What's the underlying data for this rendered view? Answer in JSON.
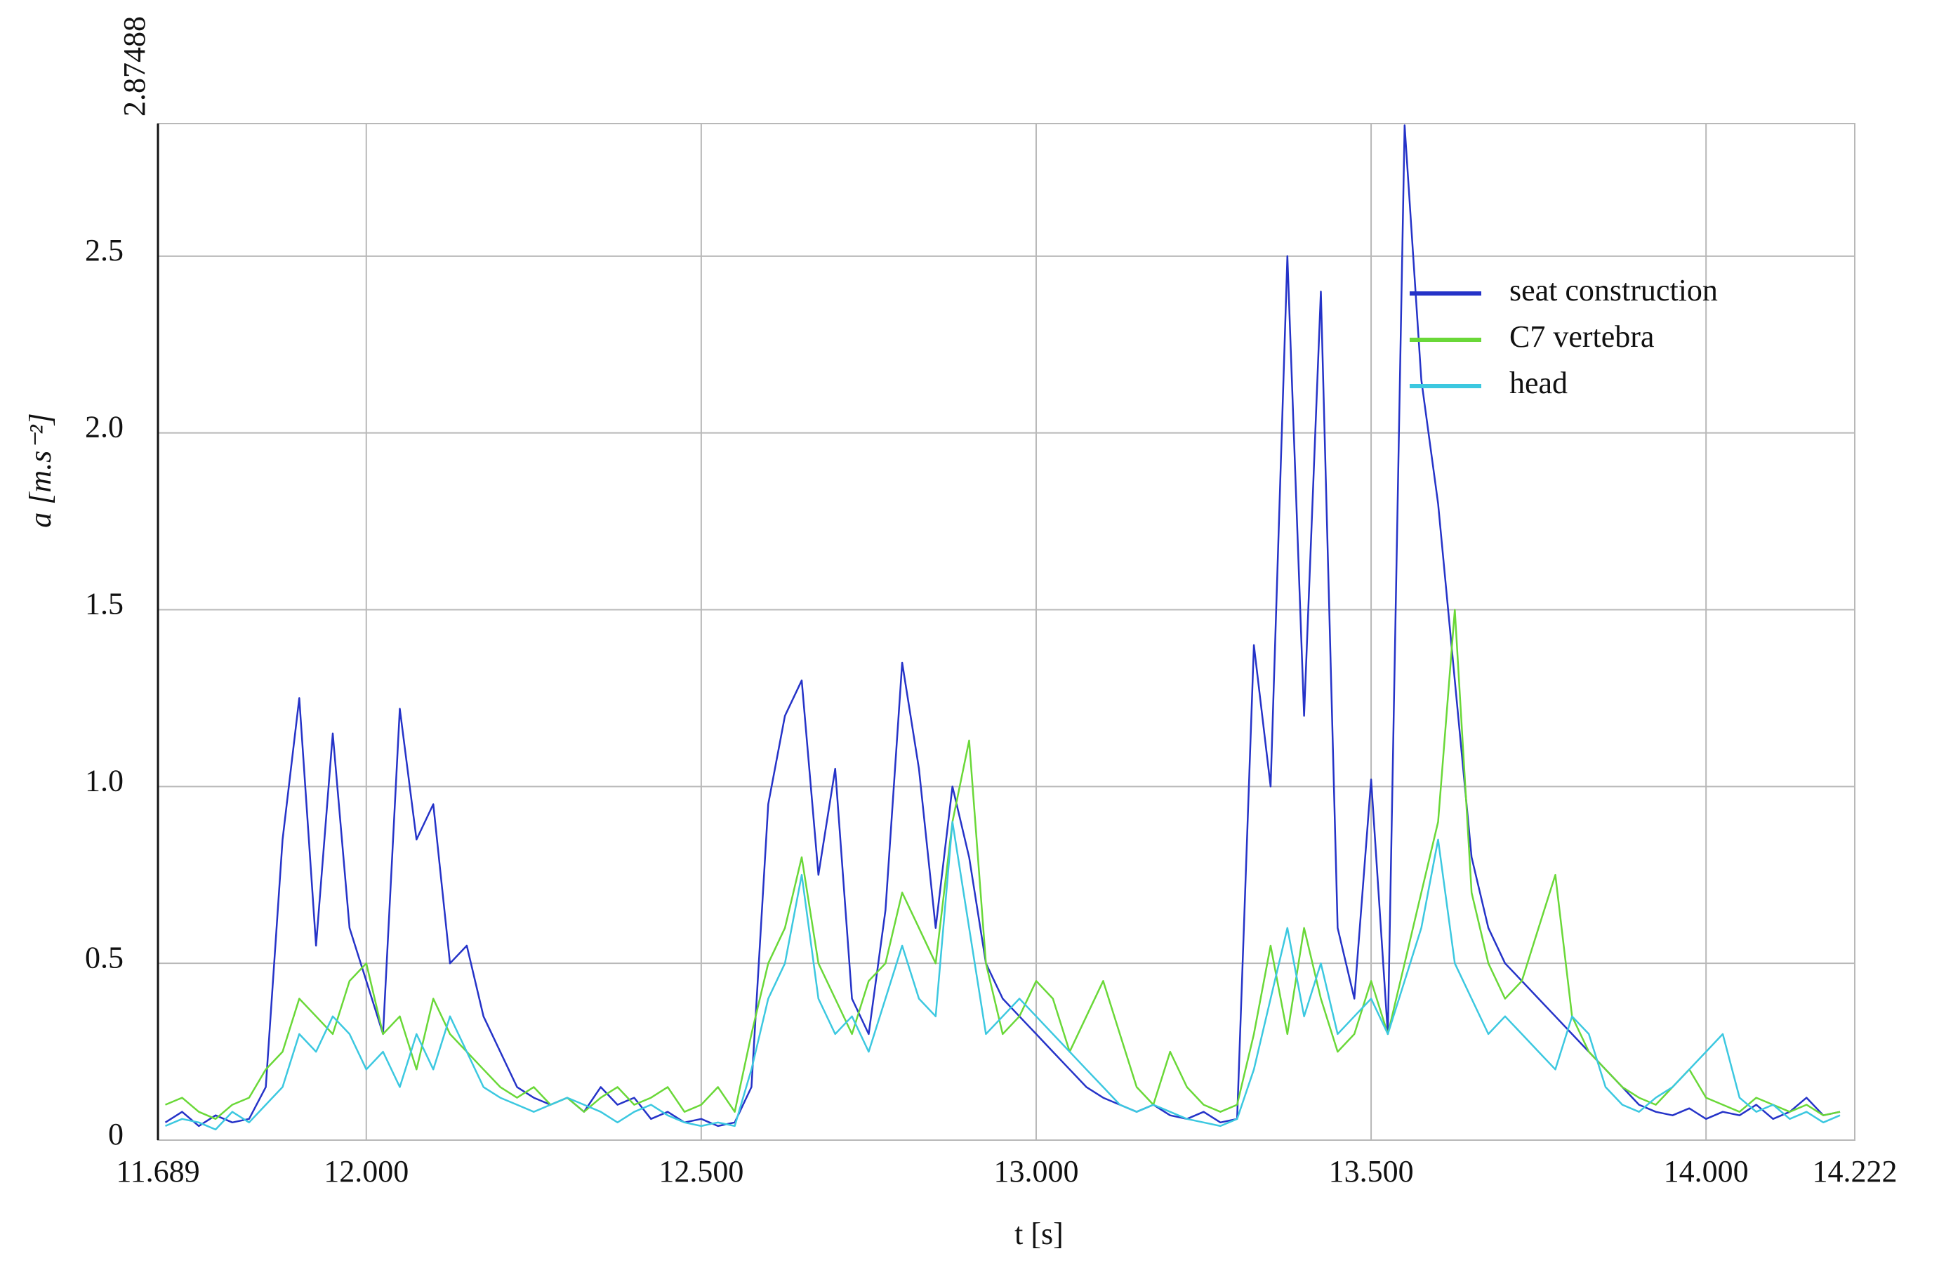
{
  "chart_data": {
    "type": "line",
    "x_label": "t [s]",
    "y_label": "a [m.s⁻²]",
    "xlim": [
      11.689,
      14.222
    ],
    "ylim": [
      0,
      2.87488
    ],
    "xticks": [
      11.689,
      {
        "value": 12,
        "label": "12.000"
      },
      {
        "value": 12.5,
        "label": "12.500"
      },
      {
        "value": 13,
        "label": "13.000"
      },
      {
        "value": 13.5,
        "label": "13.500"
      },
      {
        "value": 14,
        "label": "14.000"
      },
      14.222
    ],
    "yticks": [
      0,
      0.5,
      {
        "value": 1,
        "label": "1.0"
      },
      1.5,
      {
        "value": 2,
        "label": "2.0"
      },
      2.5,
      2.87488
    ],
    "grid": true,
    "legend": "upper right",
    "x": [
      11.7,
      11.725,
      11.75,
      11.775,
      11.8,
      11.825,
      11.85,
      11.875,
      11.9,
      11.925,
      11.95,
      11.975,
      12,
      12.025,
      12.05,
      12.075,
      12.1,
      12.125,
      12.15,
      12.175,
      12.2,
      12.225,
      12.25,
      12.275,
      12.3,
      12.325,
      12.35,
      12.375,
      12.4,
      12.425,
      12.45,
      12.475,
      12.5,
      12.525,
      12.55,
      12.575,
      12.6,
      12.625,
      12.65,
      12.675,
      12.7,
      12.725,
      12.75,
      12.775,
      12.8,
      12.825,
      12.85,
      12.875,
      12.9,
      12.925,
      12.95,
      12.975,
      13,
      13.025,
      13.05,
      13.075,
      13.1,
      13.125,
      13.15,
      13.175,
      13.2,
      13.225,
      13.25,
      13.275,
      13.3,
      13.325,
      13.35,
      13.375,
      13.4,
      13.425,
      13.45,
      13.475,
      13.5,
      13.525,
      13.55,
      13.575,
      13.6,
      13.625,
      13.65,
      13.675,
      13.7,
      13.725,
      13.75,
      13.775,
      13.8,
      13.825,
      13.85,
      13.875,
      13.9,
      13.925,
      13.95,
      13.975,
      14,
      14.025,
      14.05,
      14.075,
      14.1,
      14.125,
      14.15,
      14.175,
      14.2
    ],
    "series": [
      {
        "name": "seat construction",
        "color": "#2533c8",
        "values": [
          0.05,
          0.08,
          0.04,
          0.07,
          0.05,
          0.06,
          0.15,
          0.85,
          1.25,
          0.55,
          1.15,
          0.6,
          0.45,
          0.3,
          1.22,
          0.85,
          0.95,
          0.5,
          0.55,
          0.35,
          0.25,
          0.15,
          0.12,
          0.1,
          0.12,
          0.08,
          0.15,
          0.1,
          0.12,
          0.06,
          0.08,
          0.05,
          0.06,
          0.04,
          0.05,
          0.15,
          0.95,
          1.2,
          1.3,
          0.75,
          1.05,
          0.4,
          0.3,
          0.65,
          1.35,
          1.05,
          0.6,
          1.0,
          0.8,
          0.5,
          0.4,
          0.35,
          0.3,
          0.25,
          0.2,
          0.15,
          0.12,
          0.1,
          0.08,
          0.1,
          0.07,
          0.06,
          0.08,
          0.05,
          0.06,
          1.4,
          1.0,
          2.5,
          1.2,
          2.4,
          0.6,
          0.4,
          1.02,
          0.3,
          2.87,
          2.15,
          1.8,
          1.3,
          0.8,
          0.6,
          0.5,
          0.45,
          0.4,
          0.35,
          0.3,
          0.25,
          0.2,
          0.15,
          0.1,
          0.08,
          0.07,
          0.09,
          0.06,
          0.08,
          0.07,
          0.1,
          0.06,
          0.08,
          0.12,
          0.07,
          0.08
        ]
      },
      {
        "name": "C7 vertebra",
        "color": "#6ad838",
        "values": [
          0.1,
          0.12,
          0.08,
          0.06,
          0.1,
          0.12,
          0.2,
          0.25,
          0.4,
          0.35,
          0.3,
          0.45,
          0.5,
          0.3,
          0.35,
          0.2,
          0.4,
          0.3,
          0.25,
          0.2,
          0.15,
          0.12,
          0.15,
          0.1,
          0.12,
          0.08,
          0.12,
          0.15,
          0.1,
          0.12,
          0.15,
          0.08,
          0.1,
          0.15,
          0.08,
          0.3,
          0.5,
          0.6,
          0.8,
          0.5,
          0.4,
          0.3,
          0.45,
          0.5,
          0.7,
          0.6,
          0.5,
          0.9,
          1.13,
          0.5,
          0.3,
          0.35,
          0.45,
          0.4,
          0.25,
          0.35,
          0.45,
          0.3,
          0.15,
          0.1,
          0.25,
          0.15,
          0.1,
          0.08,
          0.1,
          0.3,
          0.55,
          0.3,
          0.6,
          0.4,
          0.25,
          0.3,
          0.45,
          0.3,
          0.5,
          0.7,
          0.9,
          1.5,
          0.7,
          0.5,
          0.4,
          0.45,
          0.6,
          0.75,
          0.35,
          0.25,
          0.2,
          0.15,
          0.12,
          0.1,
          0.15,
          0.2,
          0.12,
          0.1,
          0.08,
          0.12,
          0.1,
          0.08,
          0.1,
          0.07,
          0.08
        ]
      },
      {
        "name": "head",
        "color": "#3cc8e0",
        "values": [
          0.04,
          0.06,
          0.05,
          0.03,
          0.08,
          0.05,
          0.1,
          0.15,
          0.3,
          0.25,
          0.35,
          0.3,
          0.2,
          0.25,
          0.15,
          0.3,
          0.2,
          0.35,
          0.25,
          0.15,
          0.12,
          0.1,
          0.08,
          0.1,
          0.12,
          0.1,
          0.08,
          0.05,
          0.08,
          0.1,
          0.07,
          0.05,
          0.04,
          0.05,
          0.04,
          0.2,
          0.4,
          0.5,
          0.75,
          0.4,
          0.3,
          0.35,
          0.25,
          0.4,
          0.55,
          0.4,
          0.35,
          0.9,
          0.6,
          0.3,
          0.35,
          0.4,
          0.35,
          0.3,
          0.25,
          0.2,
          0.15,
          0.1,
          0.08,
          0.1,
          0.08,
          0.06,
          0.05,
          0.04,
          0.06,
          0.2,
          0.4,
          0.6,
          0.35,
          0.5,
          0.3,
          0.35,
          0.4,
          0.3,
          0.45,
          0.6,
          0.85,
          0.5,
          0.4,
          0.3,
          0.35,
          0.3,
          0.25,
          0.2,
          0.35,
          0.3,
          0.15,
          0.1,
          0.08,
          0.12,
          0.15,
          0.2,
          0.25,
          0.3,
          0.12,
          0.08,
          0.1,
          0.06,
          0.08,
          0.05,
          0.07
        ]
      }
    ]
  }
}
